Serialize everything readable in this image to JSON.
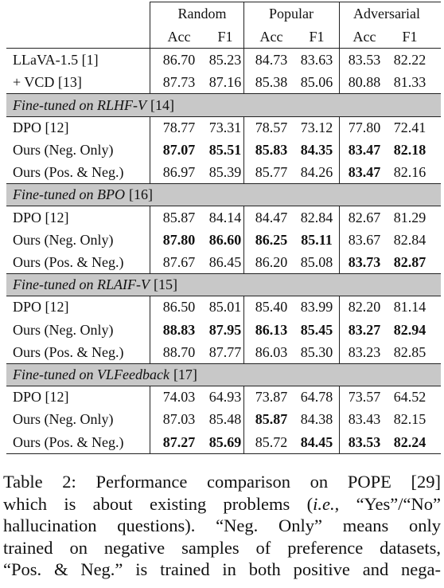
{
  "table": {
    "groups": [
      "Random",
      "Popular",
      "Adversarial"
    ],
    "metrics": [
      "Acc",
      "F1",
      "Acc",
      "F1",
      "Acc",
      "F1"
    ],
    "baselines": [
      {
        "method": "LLaVA-1.5 [1]",
        "values": [
          "86.70",
          "85.23",
          "84.73",
          "83.63",
          "83.53",
          "82.22"
        ],
        "bold": []
      },
      {
        "method": "+ VCD [13]",
        "values": [
          "87.73",
          "87.16",
          "85.38",
          "85.06",
          "80.88",
          "81.33"
        ],
        "bold": []
      }
    ],
    "sections": [
      {
        "title": "Fine-tuned on RLHF-V",
        "ref": "[14]",
        "rows": [
          {
            "method": "DPO [12]",
            "values": [
              "78.77",
              "73.31",
              "78.57",
              "73.12",
              "77.80",
              "72.41"
            ],
            "bold": []
          },
          {
            "method": "Ours (Neg. Only)",
            "values": [
              "87.07",
              "85.51",
              "85.83",
              "84.35",
              "83.47",
              "82.18"
            ],
            "bold": [
              0,
              1,
              2,
              3,
              4,
              5
            ]
          },
          {
            "method": "Ours (Pos. & Neg.)",
            "values": [
              "86.97",
              "85.39",
              "85.77",
              "84.26",
              "83.47",
              "82.16"
            ],
            "bold": [
              4
            ]
          }
        ]
      },
      {
        "title": "Fine-tuned on BPO",
        "ref": "[16]",
        "rows": [
          {
            "method": "DPO [12]",
            "values": [
              "85.87",
              "84.14",
              "84.47",
              "82.84",
              "82.67",
              "81.29"
            ],
            "bold": []
          },
          {
            "method": "Ours (Neg. Only)",
            "values": [
              "87.80",
              "86.60",
              "86.25",
              "85.11",
              "83.67",
              "82.84"
            ],
            "bold": [
              0,
              1,
              2,
              3
            ]
          },
          {
            "method": "Ours (Pos. & Neg.)",
            "values": [
              "87.67",
              "86.45",
              "86.20",
              "85.08",
              "83.73",
              "82.87"
            ],
            "bold": [
              4,
              5
            ]
          }
        ]
      },
      {
        "title": "Fine-tuned on RLAIF-V",
        "ref": "[15]",
        "rows": [
          {
            "method": "DPO [12]",
            "values": [
              "86.50",
              "85.01",
              "85.40",
              "83.99",
              "82.20",
              "81.14"
            ],
            "bold": []
          },
          {
            "method": "Ours (Neg. Only)",
            "values": [
              "88.83",
              "87.95",
              "86.13",
              "85.45",
              "83.27",
              "82.94"
            ],
            "bold": [
              0,
              1,
              2,
              3,
              4,
              5
            ]
          },
          {
            "method": "Ours (Pos. & Neg.)",
            "values": [
              "88.70",
              "87.77",
              "86.03",
              "85.30",
              "83.23",
              "82.85"
            ],
            "bold": []
          }
        ]
      },
      {
        "title": "Fine-tuned on VLFeedback",
        "ref": "[17]",
        "rows": [
          {
            "method": "DPO [12]",
            "values": [
              "74.03",
              "64.93",
              "73.87",
              "64.78",
              "73.57",
              "64.52"
            ],
            "bold": []
          },
          {
            "method": "Ours (Neg. Only)",
            "values": [
              "87.03",
              "85.48",
              "85.87",
              "84.38",
              "83.43",
              "82.15"
            ],
            "bold": [
              2
            ]
          },
          {
            "method": "Ours (Pos. & Neg.)",
            "values": [
              "87.27",
              "85.69",
              "85.72",
              "84.45",
              "83.53",
              "82.24"
            ],
            "bold": [
              0,
              1,
              3,
              4,
              5
            ]
          }
        ]
      }
    ]
  },
  "caption": {
    "lines": [
      [
        {
          "text": "Table 2: Performance comparison on POPE [29]"
        }
      ],
      [
        {
          "text": "which is about existing problems ("
        },
        {
          "text": "i.e.",
          "italic": true
        },
        {
          "text": ", “Yes”/“No”"
        }
      ],
      [
        {
          "text": "hallucination questions). “Neg. Only” means only"
        }
      ],
      [
        {
          "text": "trained on negative samples of preference datasets,"
        }
      ],
      [
        {
          "text": "“Pos. & Neg.” is trained in both positive and nega-"
        }
      ]
    ]
  }
}
